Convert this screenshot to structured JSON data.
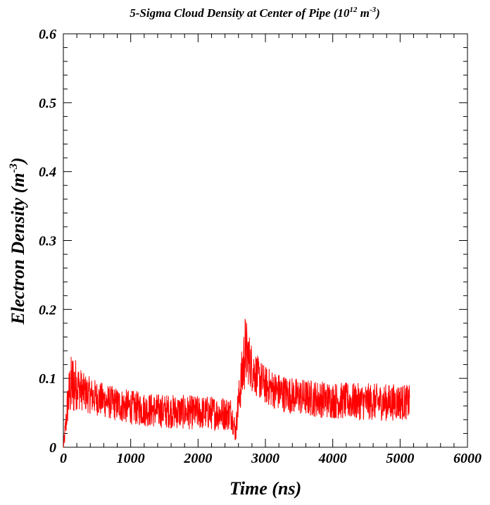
{
  "chart_data": {
    "type": "line",
    "title": {
      "main": "5-Sigma Cloud Density at Center of Pipe (10",
      "exp1": "12",
      "mid": " m",
      "exp2": "-3",
      "end": ")"
    },
    "xlabel": "Time (ns)",
    "ylabel": {
      "main": "Electron Density (m",
      "exp": "-3",
      "end": ")"
    },
    "xlim": [
      0,
      6000
    ],
    "ylim": [
      0,
      0.6
    ],
    "x_ticks": [
      "0",
      "1000",
      "2000",
      "3000",
      "4000",
      "5000",
      "6000"
    ],
    "y_ticks": [
      "0",
      "0.1",
      "0.2",
      "0.3",
      "0.4",
      "0.5",
      "0.6"
    ],
    "grid": false,
    "series": [
      {
        "color": "#ff0000",
        "x": [
          0,
          30,
          60,
          100,
          150,
          200,
          300,
          400,
          600,
          800,
          1000,
          1200,
          1400,
          1600,
          1800,
          2000,
          2200,
          2400,
          2500,
          2560,
          2580,
          2620,
          2660,
          2700,
          2750,
          2800,
          2900,
          3000,
          3200,
          3400,
          3600,
          3800,
          4000,
          4200,
          4400,
          4600,
          4800,
          5000,
          5140
        ],
        "mean": [
          0.0,
          0.025,
          0.06,
          0.085,
          0.092,
          0.09,
          0.08,
          0.075,
          0.068,
          0.062,
          0.058,
          0.055,
          0.053,
          0.052,
          0.051,
          0.05,
          0.05,
          0.049,
          0.049,
          0.02,
          0.05,
          0.08,
          0.11,
          0.14,
          0.13,
          0.115,
          0.1,
          0.09,
          0.08,
          0.075,
          0.072,
          0.07,
          0.068,
          0.067,
          0.066,
          0.066,
          0.065,
          0.066,
          0.065
        ],
        "amp": [
          0.005,
          0.02,
          0.03,
          0.045,
          0.05,
          0.035,
          0.028,
          0.027,
          0.025,
          0.025,
          0.025,
          0.025,
          0.025,
          0.025,
          0.025,
          0.025,
          0.025,
          0.025,
          0.025,
          0.015,
          0.025,
          0.03,
          0.045,
          0.055,
          0.04,
          0.035,
          0.03,
          0.028,
          0.028,
          0.027,
          0.027,
          0.027,
          0.027,
          0.027,
          0.027,
          0.027,
          0.027,
          0.027,
          0.025
        ]
      }
    ]
  }
}
